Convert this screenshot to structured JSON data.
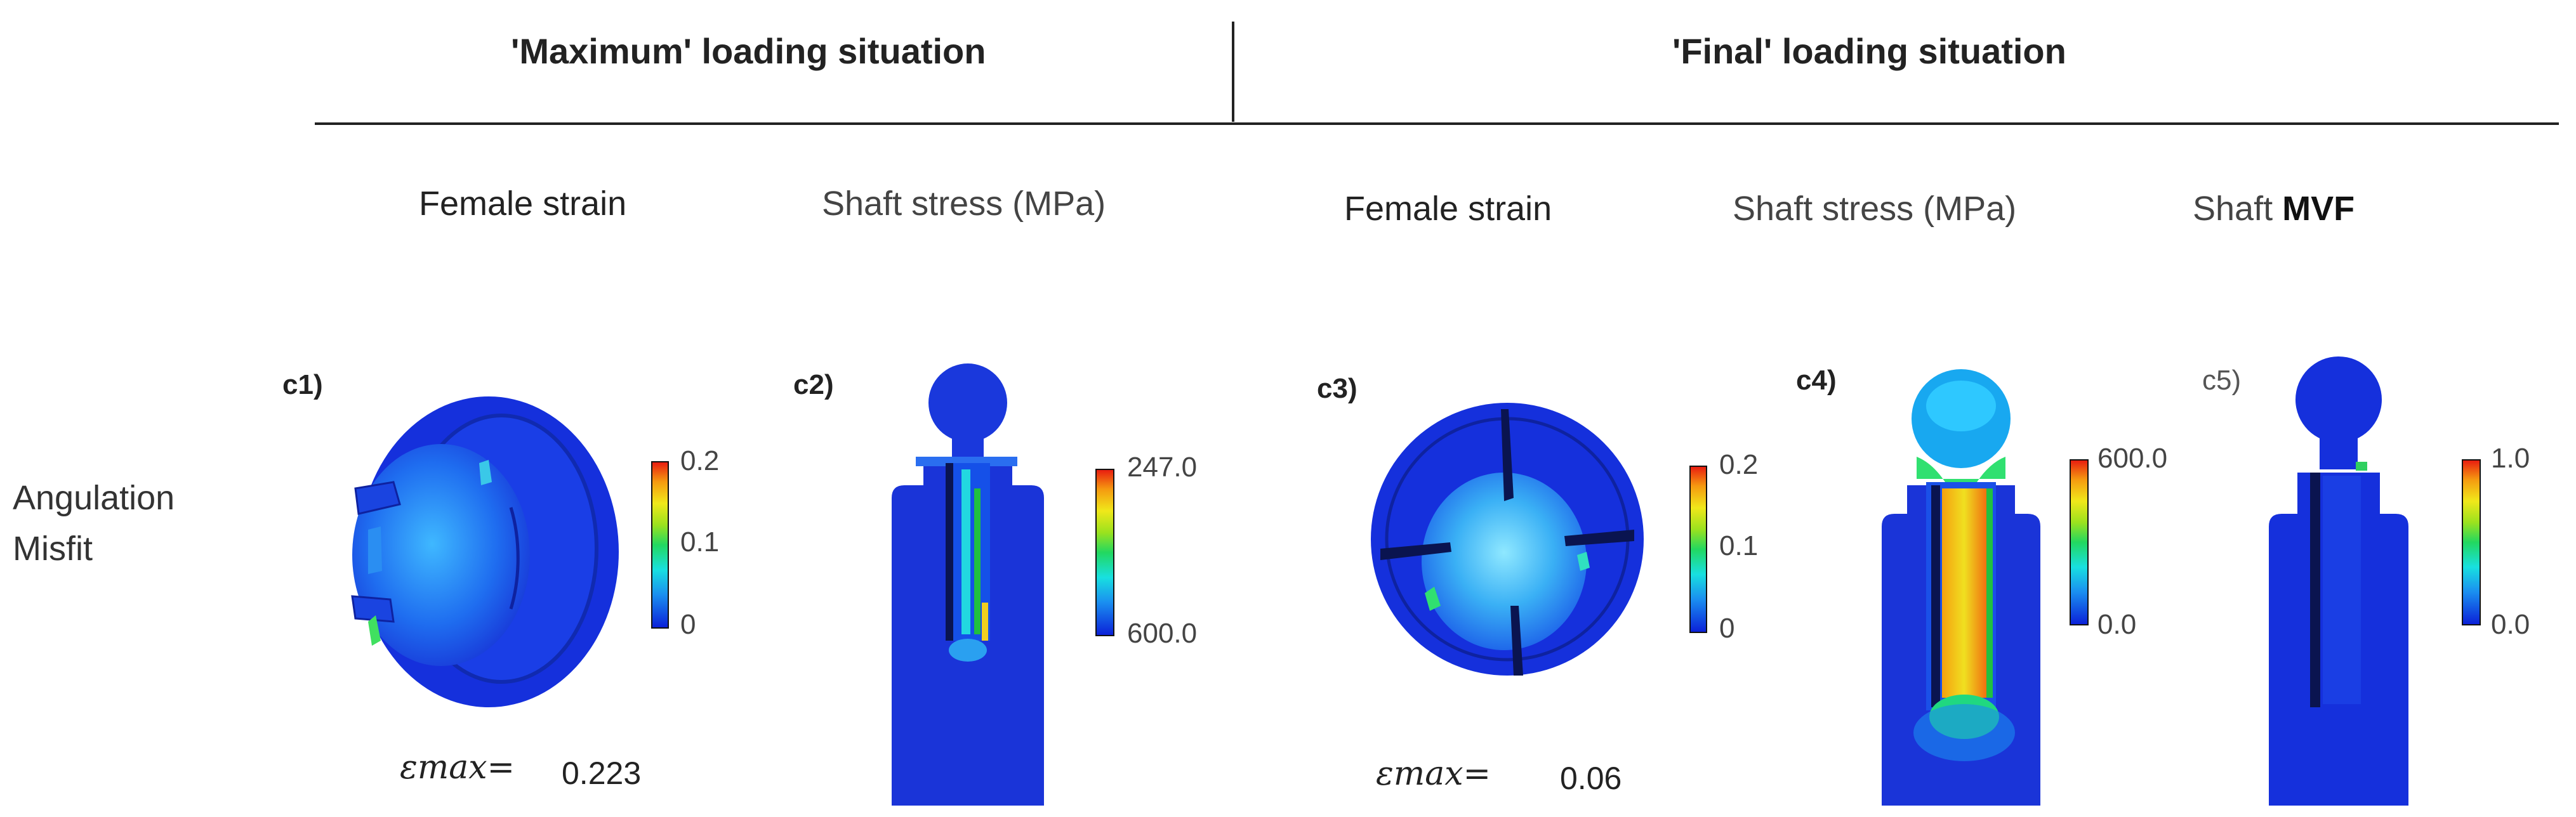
{
  "header": {
    "group_max": "'Maximum' loading situation",
    "group_final": "'Final' loading situation"
  },
  "columns": {
    "c1": "Female strain",
    "c2": "Shaft stress (MPa)",
    "c3": "Female strain",
    "c4": "Shaft stress (MPa)",
    "c5_prefix": "Shaft ",
    "c5_bold": "MVF"
  },
  "row": {
    "line1": "Angulation",
    "line2": "Misfit"
  },
  "panels": [
    {
      "label": "c1)",
      "cb_top": "0.2",
      "cb_mid": "0.1",
      "cb_bot": "0",
      "eps_label": "εmax=",
      "eps_value": "0.223"
    },
    {
      "label": "c2)",
      "cb_top": "247.0",
      "cb_bot": "600.0"
    },
    {
      "label": "c3)",
      "cb_top": "0.2",
      "cb_mid": "0.1",
      "cb_bot": "0",
      "eps_label": "εmax=",
      "eps_value": "0.06"
    },
    {
      "label": "c4)",
      "cb_top": "600.0",
      "cb_bot": "0.0"
    },
    {
      "label": "c5)",
      "cb_top": "1.0",
      "cb_bot": "0.0"
    }
  ]
}
